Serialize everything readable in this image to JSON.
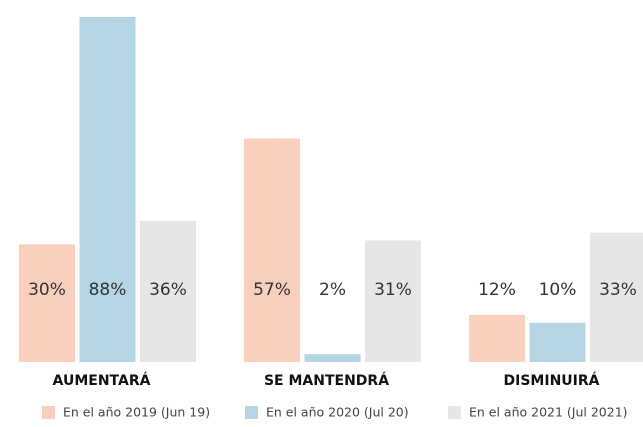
{
  "chart_data": {
    "type": "bar",
    "categories": [
      "AUMENTARÁ",
      "SE MANTENDRÁ",
      "DISMINUIRÁ"
    ],
    "series": [
      {
        "name": "En el año 2019 (Jun 19)",
        "color": "#f9cfbe",
        "values": [
          30,
          57,
          12
        ],
        "value_labels": [
          "30%",
          "57%",
          "12%"
        ]
      },
      {
        "name": "En el año 2020 (Jul 20)",
        "color": "#b3d5e4",
        "values": [
          88,
          2,
          10
        ],
        "value_labels": [
          "88%",
          "2%",
          "10%"
        ]
      },
      {
        "name": "En el año 2021 (Jul 2021)",
        "color": "#e6e6e6",
        "values": [
          36,
          31,
          33
        ],
        "value_labels": [
          "36%",
          "31%",
          "33%"
        ]
      }
    ]
  }
}
